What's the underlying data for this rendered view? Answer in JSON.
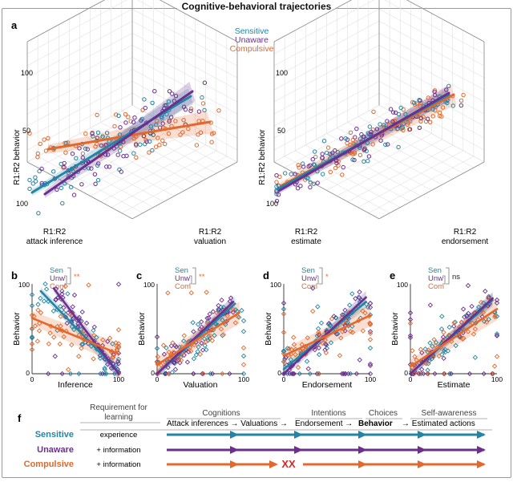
{
  "figure_title": "Cognitive-behavioral trajectories",
  "colors": {
    "sensitive": "#2385a3",
    "unaware": "#6b2f8e",
    "compulsive": "#e2682d",
    "xx": "#d62828"
  },
  "panels": {
    "a": {
      "letter": "a",
      "legend": [
        "Sensitive",
        "Unaware",
        "Compulsive"
      ],
      "left": {
        "z_label": "R1:R2 behavior",
        "z_ticks": [
          "100",
          "50"
        ],
        "x_label_1": "R1:R2",
        "x_label_2": "attack inference",
        "y_label_1": "R1:R2",
        "y_label_2": "valuation"
      },
      "right": {
        "z_label": "R1:R2 behavior",
        "z_ticks": [
          "100",
          "50"
        ],
        "x_label_1": "R1:R2",
        "x_label_2": "estimate",
        "y_label_1": "R1:R2",
        "y_label_2": "endorsement"
      }
    },
    "small": [
      {
        "letter": "b",
        "legend": [
          "Sen",
          "Unw",
          "Com"
        ],
        "sig": "**",
        "xlabel": "Inference",
        "ylabel": "Behavior",
        "tick_top": "100",
        "tick_zero_x": "0",
        "tick_zero_y": "0",
        "tick_right": "100"
      },
      {
        "letter": "c",
        "legend": [
          "Sen",
          "Unw",
          "Com"
        ],
        "sig": "**",
        "xlabel": "Valuation",
        "ylabel": "Behavior",
        "tick_top": "100",
        "tick_zero_x": "0",
        "tick_zero_y": "0",
        "tick_right": "100"
      },
      {
        "letter": "d",
        "legend": [
          "Sen",
          "Unw",
          "Com"
        ],
        "sig": "*",
        "xlabel": "Endorsement",
        "ylabel": "Behavior",
        "tick_top": "100",
        "tick_zero_x": "0",
        "tick_zero_y": "0",
        "tick_right": "100"
      },
      {
        "letter": "e",
        "legend": [
          "Sen",
          "Unw",
          "Com"
        ],
        "sig": "ns",
        "xlabel": "Estimate",
        "ylabel": "Behavior",
        "tick_top": "100",
        "tick_zero_x": "0",
        "tick_zero_y": "0",
        "tick_right": "100"
      }
    ],
    "f": {
      "letter": "f",
      "requirement_header_1": "Requirement for",
      "requirement_header_2": "learning",
      "stages": [
        {
          "title": "Cognitions",
          "items": "Attack inferences → Valuations →"
        },
        {
          "title": "Intentions",
          "items": "Endorsement →"
        },
        {
          "title": "Choices",
          "items": "Behavior"
        },
        {
          "title": "Self-awareness",
          "items": "→ Estimated actions"
        }
      ],
      "rows": [
        {
          "name": "Sensitive",
          "requirement": "experience"
        },
        {
          "name": "Unaware",
          "requirement": "+ information"
        },
        {
          "name": "Compulsive",
          "requirement": "+ information"
        }
      ],
      "xx": "XX"
    }
  },
  "chart_data": [
    {
      "type": "scatter",
      "title": "a (left)",
      "xlabel": "R1:R2 attack inference",
      "ylabel": "R1:R2 valuation",
      "zlabel": "R1:R2 behavior",
      "zlim": [
        0,
        100
      ],
      "series": [
        {
          "name": "Sensitive",
          "fit": "rising"
        },
        {
          "name": "Unaware",
          "fit": "steep rising"
        },
        {
          "name": "Compulsive",
          "fit": "shallow rising"
        }
      ]
    },
    {
      "type": "scatter",
      "title": "a (right)",
      "xlabel": "R1:R2 estimate",
      "ylabel": "R1:R2 endorsement",
      "zlabel": "R1:R2 behavior",
      "zlim": [
        0,
        100
      ],
      "series": [
        {
          "name": "Sensitive",
          "fit": "rising"
        },
        {
          "name": "Unaware",
          "fit": "rising"
        },
        {
          "name": "Compulsive",
          "fit": "rising"
        }
      ]
    },
    {
      "type": "scatter",
      "title": "b",
      "xlabel": "Inference",
      "ylabel": "Behavior",
      "xlim": [
        0,
        100
      ],
      "ylim": [
        0,
        100
      ],
      "series": [
        {
          "name": "Sen",
          "fit_points": [
            [
              10,
              92
            ],
            [
              100,
              2
            ]
          ]
        },
        {
          "name": "Unw",
          "fit_points": [
            [
              25,
              95
            ],
            [
              100,
              0
            ]
          ]
        },
        {
          "name": "Com",
          "fit_points": [
            [
              0,
              62
            ],
            [
              100,
              22
            ]
          ]
        }
      ]
    },
    {
      "type": "scatter",
      "title": "c",
      "xlabel": "Valuation",
      "ylabel": "Behavior",
      "xlim": [
        0,
        100
      ],
      "ylim": [
        0,
        100
      ],
      "series": [
        {
          "name": "Sen",
          "fit_points": [
            [
              0,
              0
            ],
            [
              90,
              78
            ]
          ]
        },
        {
          "name": "Unw",
          "fit_points": [
            [
              0,
              0
            ],
            [
              88,
              80
            ]
          ]
        },
        {
          "name": "Com",
          "fit_points": [
            [
              0,
              10
            ],
            [
              95,
              68
            ]
          ]
        }
      ]
    },
    {
      "type": "scatter",
      "title": "d",
      "xlabel": "Endorsement",
      "ylabel": "Behavior",
      "xlim": [
        0,
        100
      ],
      "ylim": [
        0,
        100
      ],
      "series": [
        {
          "name": "Sen",
          "fit_points": [
            [
              0,
              5
            ],
            [
              95,
              80
            ]
          ]
        },
        {
          "name": "Unw",
          "fit_points": [
            [
              0,
              0
            ],
            [
              95,
              85
            ]
          ]
        },
        {
          "name": "Com",
          "fit_points": [
            [
              0,
              20
            ],
            [
              100,
              65
            ]
          ]
        }
      ]
    },
    {
      "type": "scatter",
      "title": "e",
      "xlabel": "Estimate",
      "ylabel": "Behavior",
      "xlim": [
        0,
        100
      ],
      "ylim": [
        0,
        100
      ],
      "series": [
        {
          "name": "Sen",
          "fit_points": [
            [
              0,
              0
            ],
            [
              95,
              82
            ]
          ]
        },
        {
          "name": "Unw",
          "fit_points": [
            [
              0,
              0
            ],
            [
              95,
              84
            ]
          ]
        },
        {
          "name": "Com",
          "fit_points": [
            [
              0,
              8
            ],
            [
              100,
              72
            ]
          ]
        }
      ]
    }
  ]
}
